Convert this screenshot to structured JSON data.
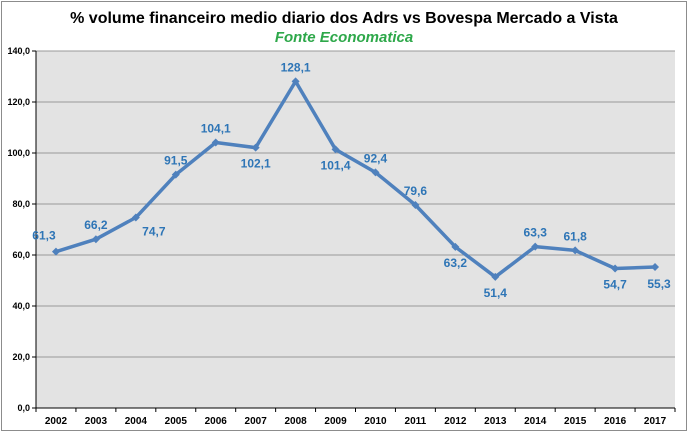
{
  "chart_data": {
    "type": "line",
    "title": "%  volume financeiro medio diario dos Adrs vs Bovespa Mercado a Vista",
    "subtitle": "Fonte Economatica",
    "categories": [
      "2002",
      "2003",
      "2004",
      "2005",
      "2006",
      "2007",
      "2008",
      "2009",
      "2010",
      "2011",
      "2012",
      "2013",
      "2014",
      "2015",
      "2016",
      "2017"
    ],
    "values": [
      61.3,
      66.2,
      74.7,
      91.5,
      104.1,
      102.1,
      128.1,
      101.4,
      92.4,
      79.6,
      63.2,
      51.4,
      63.3,
      61.8,
      54.7,
      55.3
    ],
    "data_labels": [
      "61,3",
      "66,2",
      "74,7",
      "91,5",
      "104,1",
      "102,1",
      "128,1",
      "101,4",
      "92,4",
      "79,6",
      "63,2",
      "51,4",
      "63,3",
      "61,8",
      "54,7",
      "55,3"
    ],
    "yticks": [
      0,
      20,
      40,
      60,
      80,
      100,
      120,
      140
    ],
    "ytick_labels": [
      "0,0",
      "20,0",
      "40,0",
      "60,0",
      "80,0",
      "100,0",
      "120,0",
      "140,0"
    ],
    "ylim": [
      0,
      140
    ],
    "grid": true,
    "colors": {
      "line": "#4f81bd",
      "labels": "#2e75b6",
      "plot_bg": "#e3e3e3",
      "grid": "#9a9a9a"
    }
  }
}
